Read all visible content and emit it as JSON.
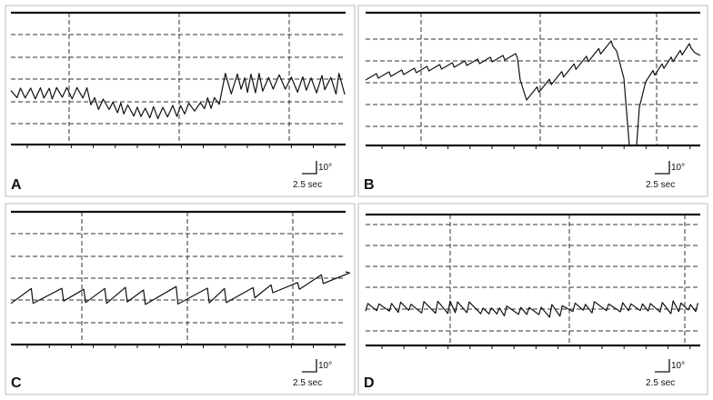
{
  "panels": [
    {
      "label": "A",
      "scale_amplitude": "10°",
      "scale_time": "2.5 sec"
    },
    {
      "label": "B",
      "scale_amplitude": "10°",
      "scale_time": "2.5 sec"
    },
    {
      "label": "C",
      "scale_amplitude": "10°",
      "scale_time": "2.5 sec"
    },
    {
      "label": "D",
      "scale_amplitude": "10°",
      "scale_time": "2.5 sec"
    }
  ]
}
